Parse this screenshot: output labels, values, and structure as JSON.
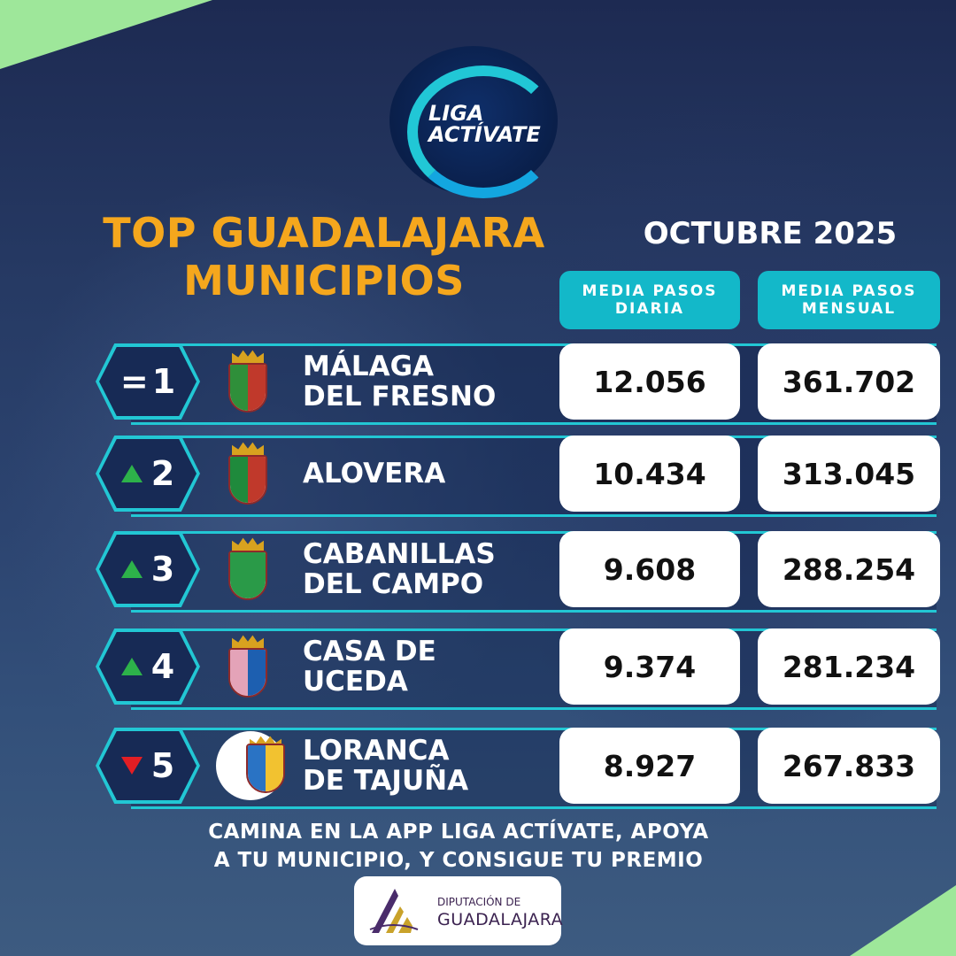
{
  "brand": {
    "logo_line1": "LIGA",
    "logo_line2": "ACTÍVATE",
    "accent_color": "#13b8c9",
    "title_color": "#f5a71d",
    "corner_color": "#9ee79a"
  },
  "header": {
    "title_line1": "TOP GUADALAJARA",
    "title_line2": "MUNICIPIOS",
    "period": "OCTUBRE 2025"
  },
  "columns": {
    "daily_line1": "MEDIA PASOS",
    "daily_line2": "DIARIA",
    "monthly_line1": "MEDIA PASOS",
    "monthly_line2": "MENSUAL"
  },
  "ranking": [
    {
      "trend": "equal",
      "trend_symbol": "=",
      "rank": "1",
      "name_line1": "MÁLAGA",
      "name_line2": "DEL FRESNO",
      "daily": "12.056",
      "monthly": "361.702",
      "crest_colors": [
        "#2f8f3a",
        "#c0392b"
      ]
    },
    {
      "trend": "up",
      "trend_symbol": "",
      "rank": "2",
      "name_line1": "ALOVERA",
      "name_line2": "",
      "daily": "10.434",
      "monthly": "313.045",
      "crest_colors": [
        "#1f8a3c",
        "#c0392b"
      ]
    },
    {
      "trend": "up",
      "trend_symbol": "",
      "rank": "3",
      "name_line1": "CABANILLAS",
      "name_line2": "DEL CAMPO",
      "daily": "9.608",
      "monthly": "288.254",
      "crest_colors": [
        "#2a9a48",
        "#2a9a48"
      ]
    },
    {
      "trend": "up",
      "trend_symbol": "",
      "rank": "4",
      "name_line1": "CASA DE",
      "name_line2": "UCEDA",
      "daily": "9.374",
      "monthly": "281.234",
      "crest_colors": [
        "#e4a3b8",
        "#1d5fb0"
      ]
    },
    {
      "trend": "down",
      "trend_symbol": "",
      "rank": "5",
      "name_line1": "LORANCA",
      "name_line2": "DE TAJUÑA",
      "daily": "8.927",
      "monthly": "267.833",
      "crest_colors": [
        "#2a73c4",
        "#f2c230"
      ]
    }
  ],
  "footer": {
    "cta_line1": "CAMINA EN LA APP LIGA ACTÍVATE, APOYA",
    "cta_line2": "A TU MUNICIPIO, Y CONSIGUE TU PREMIO",
    "sponsor_small": "DIPUTACIÓN DE",
    "sponsor_big": "GUADALAJARA"
  }
}
